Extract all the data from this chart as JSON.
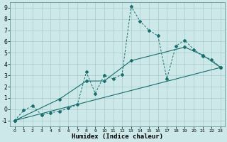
{
  "xlabel": "Humidex (Indice chaleur)",
  "bg_color": "#cce8e8",
  "grid_color": "#aacccc",
  "line_color": "#1a6e6e",
  "xlim": [
    -0.5,
    23.5
  ],
  "ylim": [
    -1.5,
    9.5
  ],
  "xticks": [
    0,
    1,
    2,
    3,
    4,
    5,
    6,
    7,
    8,
    9,
    10,
    11,
    12,
    13,
    14,
    15,
    16,
    17,
    18,
    19,
    20,
    21,
    22,
    23
  ],
  "yticks": [
    -1,
    0,
    1,
    2,
    3,
    4,
    5,
    6,
    7,
    8,
    9
  ],
  "line1_x": [
    0,
    1,
    2,
    3,
    4,
    5,
    6,
    7,
    8,
    9,
    10,
    11,
    12,
    13,
    14,
    15,
    16,
    17,
    18,
    19,
    20,
    21,
    22,
    23
  ],
  "line1_y": [
    -1.0,
    -0.1,
    0.3,
    -0.5,
    -0.3,
    -0.2,
    0.1,
    0.4,
    3.3,
    1.4,
    3.0,
    2.7,
    3.1,
    9.1,
    7.8,
    7.0,
    6.5,
    2.7,
    5.6,
    6.1,
    5.3,
    4.7,
    4.4,
    3.7
  ],
  "line2_x": [
    0,
    5,
    8,
    10,
    13,
    19,
    21,
    23
  ],
  "line2_y": [
    -1.0,
    0.9,
    2.5,
    2.5,
    4.3,
    5.5,
    4.8,
    3.7
  ],
  "line3_x": [
    0,
    23
  ],
  "line3_y": [
    -1.0,
    3.7
  ]
}
